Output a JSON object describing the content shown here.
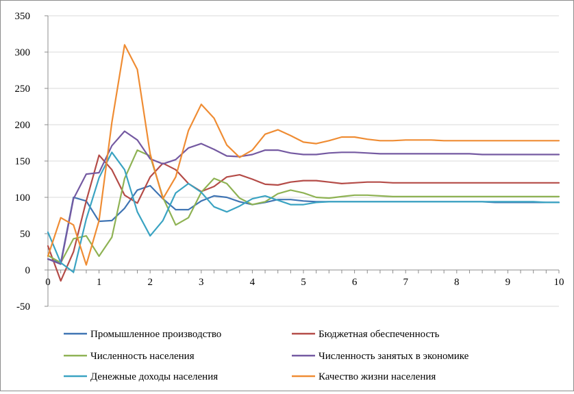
{
  "chart_data": {
    "type": "line",
    "title": "",
    "xlabel": "",
    "ylabel": "",
    "xlim": [
      0,
      10
    ],
    "ylim": [
      -50,
      350
    ],
    "grid": "horizontal",
    "legend_position": "bottom",
    "x_ticks": [
      "0",
      "1",
      "2",
      "3",
      "4",
      "5",
      "6",
      "7",
      "8",
      "9",
      "10"
    ],
    "y_ticks": [
      "-50",
      "0",
      "50",
      "100",
      "150",
      "200",
      "250",
      "300",
      "350"
    ],
    "x": [
      0,
      0.25,
      0.5,
      0.75,
      1,
      1.25,
      1.5,
      1.75,
      2,
      2.25,
      2.5,
      2.75,
      3,
      3.25,
      3.5,
      3.75,
      4,
      4.25,
      4.5,
      4.75,
      5,
      5.25,
      5.5,
      5.75,
      6,
      6.25,
      6.5,
      6.75,
      7,
      7.25,
      7.5,
      7.75,
      8,
      8.25,
      8.5,
      8.75,
      9,
      9.25,
      9.5,
      9.75,
      10
    ],
    "series": [
      {
        "name": "Промышленное производство",
        "color": "#3F74B3",
        "values": [
          15,
          10,
          100,
          95,
          67,
          68,
          85,
          110,
          116,
          98,
          83,
          83,
          95,
          102,
          100,
          94,
          90,
          93,
          97,
          97,
          95,
          94,
          94,
          94,
          94,
          94,
          94,
          94,
          94,
          94,
          94,
          94,
          94,
          94,
          94,
          93,
          93,
          93,
          93,
          93,
          93
        ]
      },
      {
        "name": "Бюджетная обеспеченность",
        "color": "#B44B47",
        "values": [
          33,
          -15,
          25,
          95,
          158,
          138,
          103,
          92,
          128,
          147,
          138,
          119,
          108,
          115,
          128,
          131,
          125,
          118,
          117,
          121,
          123,
          123,
          121,
          119,
          120,
          121,
          121,
          120,
          120,
          120,
          120,
          120,
          120,
          120,
          120,
          120,
          120,
          120,
          120,
          120,
          120
        ]
      },
      {
        "name": "Численность населения",
        "color": "#8EB253",
        "values": [
          20,
          10,
          43,
          47,
          19,
          45,
          126,
          165,
          157,
          100,
          62,
          72,
          107,
          126,
          119,
          99,
          90,
          94,
          105,
          110,
          106,
          100,
          99,
          101,
          103,
          103,
          102,
          101,
          101,
          101,
          101,
          101,
          101,
          101,
          101,
          101,
          101,
          101,
          101,
          101,
          101
        ]
      },
      {
        "name": "Численность занятых в экономике",
        "color": "#7459A1",
        "values": [
          15,
          8,
          98,
          132,
          134,
          171,
          191,
          179,
          153,
          146,
          152,
          168,
          174,
          166,
          157,
          156,
          159,
          165,
          165,
          161,
          159,
          159,
          161,
          162,
          162,
          161,
          160,
          160,
          160,
          160,
          160,
          160,
          160,
          160,
          159,
          159,
          159,
          159,
          159,
          159,
          159
        ]
      },
      {
        "name": "Денежные доходы населения",
        "color": "#3AA3C2",
        "values": [
          52,
          10,
          -3,
          70,
          127,
          162,
          138,
          80,
          47,
          68,
          106,
          119,
          107,
          87,
          80,
          88,
          98,
          102,
          96,
          90,
          90,
          93,
          94,
          94,
          94,
          94,
          94,
          94,
          94,
          94,
          94,
          94,
          94,
          94,
          94,
          94,
          94,
          94,
          94,
          93,
          93
        ]
      },
      {
        "name": "Качество жизни населения",
        "color": "#EF8C33",
        "values": [
          19,
          72,
          62,
          7,
          68,
          203,
          310,
          276,
          160,
          98,
          128,
          192,
          228,
          209,
          172,
          155,
          165,
          187,
          193,
          185,
          176,
          174,
          178,
          183,
          183,
          180,
          178,
          178,
          179,
          179,
          179,
          178,
          178,
          178,
          178,
          178,
          178,
          178,
          178,
          178,
          178
        ]
      }
    ]
  }
}
